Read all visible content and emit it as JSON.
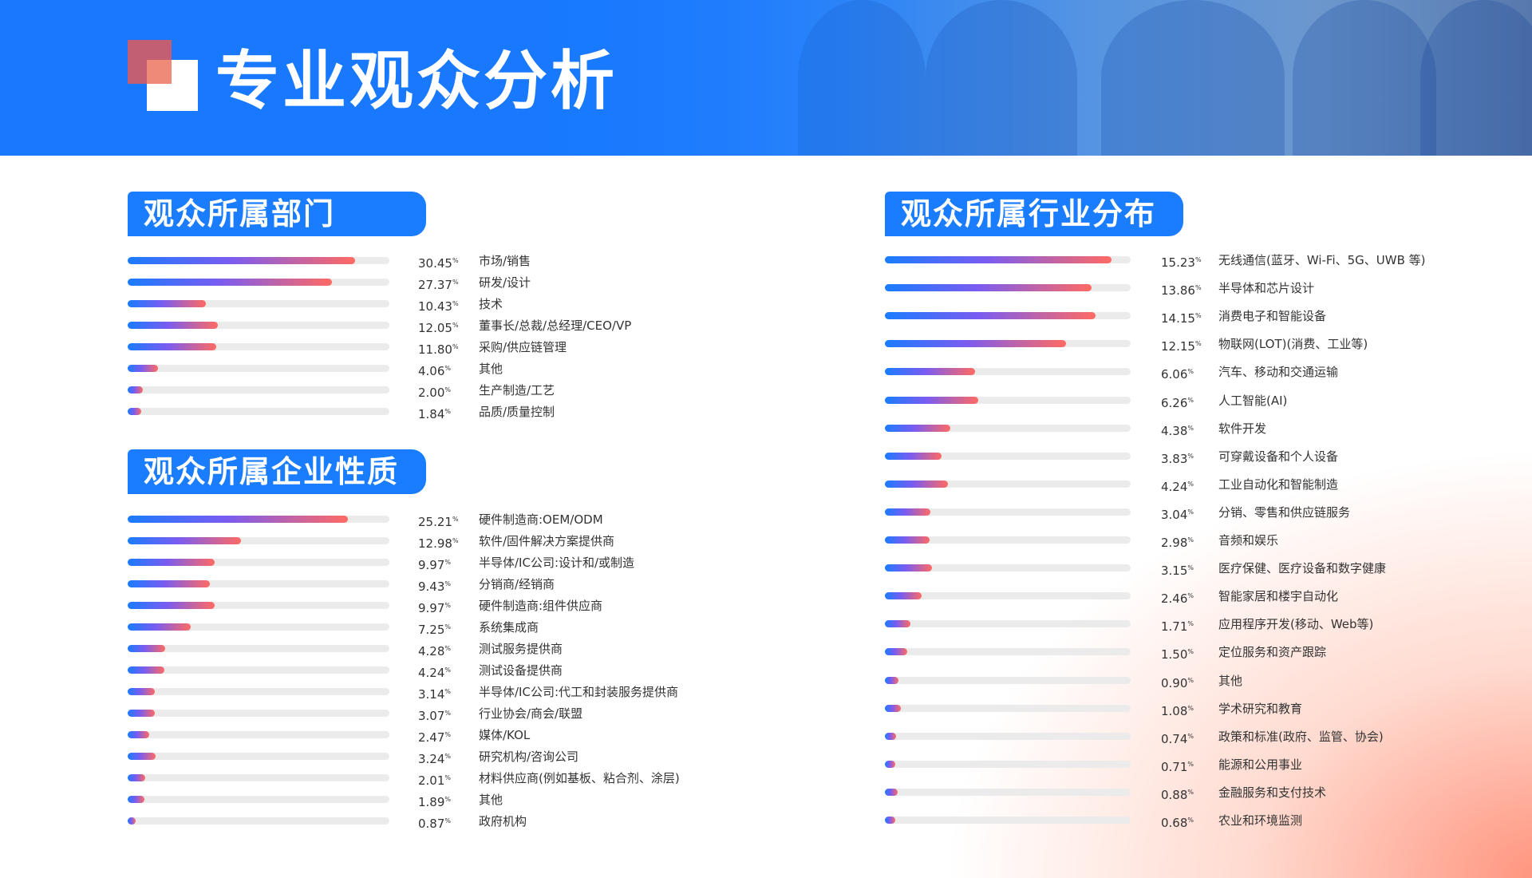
{
  "page": {
    "title": "专业观众分析"
  },
  "colors": {
    "accent": "#1a7cff",
    "bar_start": "#1a7cff",
    "bar_mid": "#7a5cf0",
    "bar_end": "#ff6a63",
    "track": "#ebebeb",
    "logo_red": "#e15a5a"
  },
  "chart_data": [
    {
      "type": "bar",
      "title": "观众所属部门",
      "unit": "%",
      "xlim": [
        0,
        35
      ],
      "categories": [
        "市场/销售",
        "研发/设计",
        "技术",
        "董事长/总裁/总经理/CEO/VP",
        "采购/供应链管理",
        "其他",
        "生产制造/工艺",
        "品质/质量控制"
      ],
      "values": [
        30.45,
        27.37,
        10.43,
        12.05,
        11.8,
        4.06,
        2.0,
        1.84
      ],
      "labels": [
        "30.45",
        "27.37",
        "10.43",
        "12.05",
        "11.80",
        "4.06",
        "2.00",
        "1.84"
      ]
    },
    {
      "type": "bar",
      "title": "观众所属企业性质",
      "unit": "%",
      "xlim": [
        0,
        30
      ],
      "categories": [
        "硬件制造商:OEM/ODM",
        "软件/固件解决方案提供商",
        "半导体/IC公司:设计和/或制造",
        "分销商/经销商",
        "硬件制造商:组件供应商",
        "系统集成商",
        "测试服务提供商",
        "测试设备提供商",
        "半导体/IC公司:代工和封装服务提供商",
        "行业协会/商会/联盟",
        "媒体/KOL",
        "研究机构/咨询公司",
        "材料供应商(例如基板、粘合剂、涂层)",
        "其他",
        "政府机构"
      ],
      "values": [
        25.21,
        12.98,
        9.97,
        9.43,
        9.97,
        7.25,
        4.28,
        4.24,
        3.14,
        3.07,
        2.47,
        3.24,
        2.01,
        1.89,
        0.87
      ],
      "labels": [
        "25.21",
        "12.98",
        "9.97",
        "9.43",
        "9.97",
        "7.25",
        "4.28",
        "4.24",
        "3.14",
        "3.07",
        "2.47",
        "3.24",
        "2.01",
        "1.89",
        "0.87"
      ]
    },
    {
      "type": "bar",
      "title": "观众所属行业分布",
      "unit": "%",
      "xlim": [
        0,
        16.5
      ],
      "categories": [
        "无线通信(蓝牙、Wi-Fi、5G、UWB 等)",
        "半导体和芯片设计",
        "消费电子和智能设备",
        "物联网(LOT)(消费、工业等)",
        "汽车、移动和交通运输",
        "人工智能(AI)",
        "软件开发",
        "可穿戴设备和个人设备",
        "工业自动化和智能制造",
        "分销、零售和供应链服务",
        "音频和娱乐",
        "医疗保健、医疗设备和数字健康",
        "智能家居和楼宇自动化",
        "应用程序开发(移动、Web等)",
        "定位服务和资产跟踪",
        "其他",
        "学术研究和教育",
        "政策和标准(政府、监管、协会)",
        "能源和公用事业",
        "金融服务和支付技术",
        "农业和环境监测"
      ],
      "values": [
        15.23,
        13.86,
        14.15,
        12.15,
        6.06,
        6.26,
        4.38,
        3.83,
        4.24,
        3.04,
        2.98,
        3.15,
        2.46,
        1.71,
        1.5,
        0.9,
        1.08,
        0.74,
        0.71,
        0.88,
        0.68
      ],
      "labels": [
        "15.23",
        "13.86",
        "14.15",
        "12.15",
        "6.06",
        "6.26",
        "4.38",
        "3.83",
        "4.24",
        "3.04",
        "2.98",
        "3.15",
        "2.46",
        "1.71",
        "1.50",
        "0.90",
        "1.08",
        "0.74",
        "0.71",
        "0.88",
        "0.68"
      ]
    }
  ]
}
